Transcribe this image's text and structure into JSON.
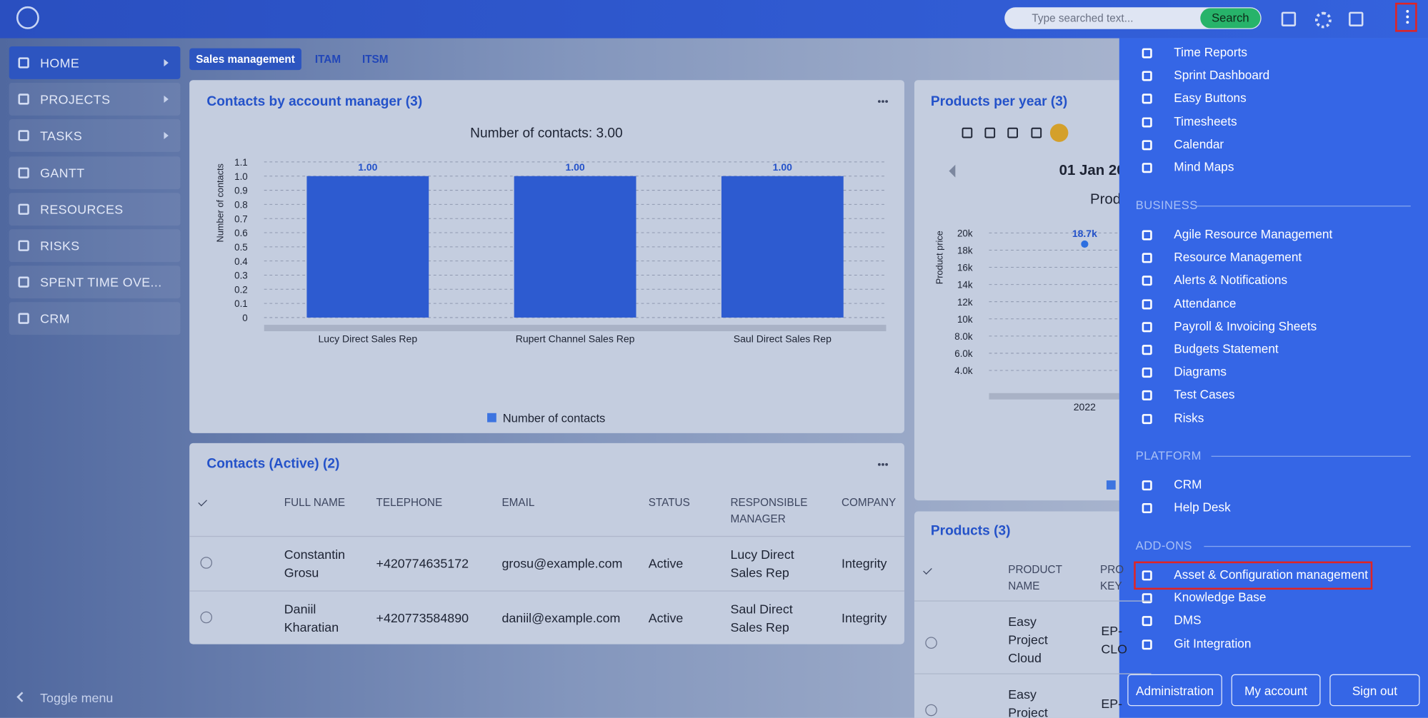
{
  "topbar": {
    "search_placeholder": "Type searched text...",
    "search_button": "Search"
  },
  "sidebar": {
    "items": [
      "HOME",
      "PROJECTS",
      "TASKS",
      "GANTT",
      "RESOURCES",
      "RISKS",
      "SPENT TIME OVE...",
      "CRM"
    ],
    "toggle": "Toggle menu"
  },
  "tabs": [
    "Sales management",
    "ITAM",
    "ITSM"
  ],
  "contacts_chart": {
    "type": "bar",
    "title": "Contacts by account manager (3)",
    "subtitle": "Number of contacts: 3.00",
    "y_label": "Number of contacts",
    "categories": [
      "Lucy Direct Sales Rep",
      "Rupert Channel Sales Rep",
      "Saul Direct Sales Rep"
    ],
    "values": [
      1,
      1,
      1
    ],
    "value_labels": [
      "1.00",
      "1.00",
      "1.00"
    ],
    "color": "#2d5bd0",
    "ylim": [
      0,
      1.1
    ],
    "yticks": [
      0,
      0.1,
      0.2,
      0.3,
      0.4,
      0.5,
      0.6,
      0.7,
      0.8,
      0.9,
      {
        "value": 1,
        "label": "1.0"
      },
      1.1
    ],
    "grid": true,
    "legend": "Number of contacts"
  },
  "contacts_table": {
    "title": "Contacts (Active) (2)",
    "columns": [
      "FULL NAME",
      "TELEPHONE",
      "EMAIL",
      "STATUS",
      "RESPONSIBLE MANAGER",
      "COMPANY"
    ],
    "rows": [
      [
        "Constantin Grosu",
        "+420774635172",
        "grosu@example.com",
        "Active",
        "Lucy Direct Sales Rep",
        "Integrity"
      ],
      [
        "Daniil Kharatian",
        "+420773584890",
        "daniil@example.com",
        "Active",
        "Saul Direct Sales Rep",
        "Integrity"
      ]
    ]
  },
  "products_chart": {
    "type": "line",
    "title": "Products per year (3)",
    "date": "01 Jan 20",
    "subtitle": "Prod",
    "y_label": "Product price",
    "x": [
      "2022"
    ],
    "values": [
      18700
    ],
    "value_labels": [
      "18.7k"
    ],
    "color": "#2d6fe0",
    "ylim": [
      2000,
      20000
    ],
    "yticks": [
      {
        "value": 4000,
        "label": "4.0k"
      },
      {
        "value": 6000,
        "label": "6.0k"
      },
      {
        "value": 8000,
        "label": "8.0k"
      },
      {
        "value": 10000,
        "label": "10k"
      },
      {
        "value": 12000,
        "label": "12k"
      },
      {
        "value": 14000,
        "label": "14k"
      },
      {
        "value": 16000,
        "label": "16k"
      },
      {
        "value": 18000,
        "label": "18k"
      },
      {
        "value": 20000,
        "label": "20k"
      }
    ],
    "grid": true
  },
  "products_table": {
    "title": "Products (3)",
    "columns": [
      "PRODUCT NAME",
      "PRO KEY"
    ],
    "rows": [
      [
        "Easy Project Cloud",
        "EP- CLO"
      ],
      [
        "Easy Project",
        "EP-"
      ]
    ]
  },
  "menu": {
    "items": [
      "Time Reports",
      "Sprint Dashboard",
      "Easy Buttons",
      "Timesheets",
      "Calendar",
      "Mind Maps"
    ],
    "sections": [
      {
        "title": "BUSINESS",
        "items": [
          "Agile Resource Management",
          "Resource Management",
          "Alerts & Notifications",
          "Attendance",
          "Payroll & Invoicing Sheets",
          "Budgets Statement",
          "Diagrams",
          "Test Cases",
          "Risks"
        ]
      },
      {
        "title": "PLATFORM",
        "items": [
          "CRM",
          "Help Desk"
        ]
      },
      {
        "title": "ADD-ONS",
        "items": [
          "Asset & Configuration management",
          "Knowledge Base",
          "DMS",
          "Git Integration"
        ]
      }
    ],
    "buttons": [
      "Administration",
      "My account",
      "Sign out"
    ]
  }
}
